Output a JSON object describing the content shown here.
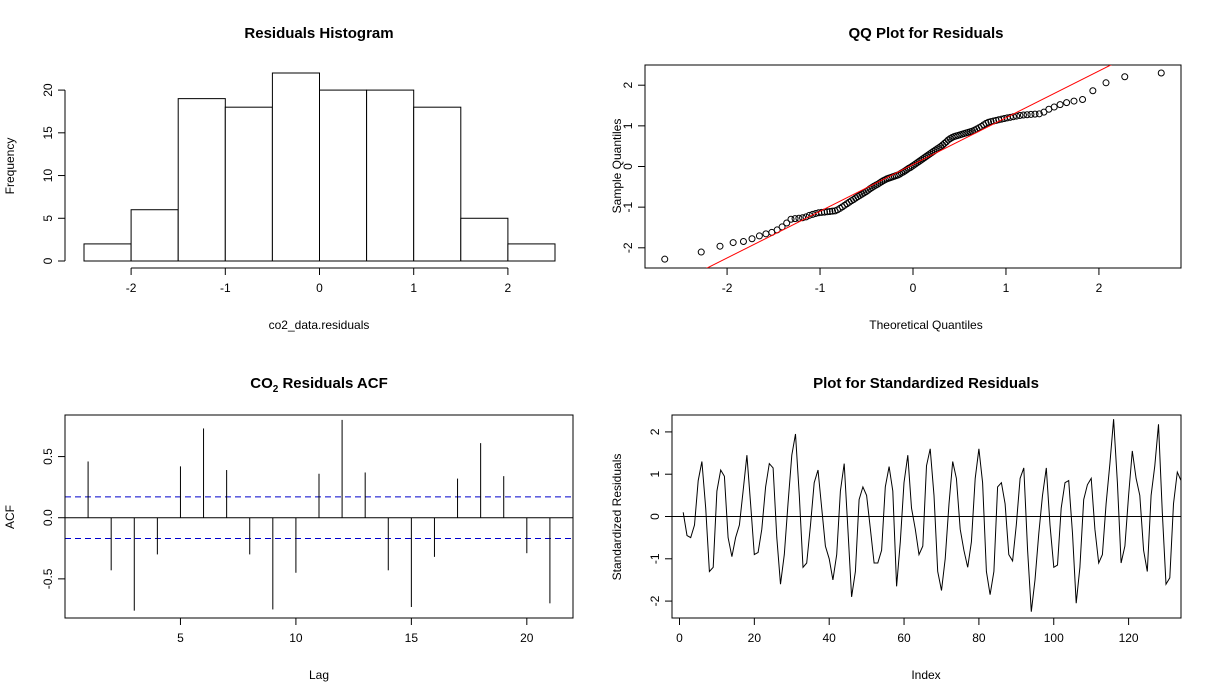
{
  "chart_data": [
    {
      "type": "bar",
      "title": "Residuals Histogram",
      "xlabel": "co2_data.residuals",
      "ylabel": "Frequency",
      "bin_edges": [
        -2.5,
        -2.0,
        -1.5,
        -1.0,
        -0.5,
        0.0,
        0.5,
        1.0,
        1.5,
        2.0,
        2.5
      ],
      "values": [
        2,
        6,
        19,
        18,
        22,
        20,
        20,
        18,
        5,
        2
      ],
      "xlim": [
        -2.5,
        2.5
      ],
      "ylim": [
        0,
        22
      ],
      "xticks": [
        "-2",
        "-1",
        "0",
        "1",
        "2"
      ],
      "yticks": [
        "0",
        "5",
        "10",
        "15",
        "20"
      ]
    },
    {
      "type": "scatter",
      "title": "QQ Plot for Residuals",
      "xlabel": "Theoretical Quantiles",
      "ylabel": "Sample Quantiles",
      "n_points": 132,
      "xlim": [
        -2.7,
        2.7
      ],
      "ylim": [
        -2.3,
        2.3
      ],
      "xticks": [
        "-2",
        "-1",
        "0",
        "1",
        "2"
      ],
      "yticks": [
        "-2",
        "-1",
        "0",
        "1",
        "2"
      ],
      "reference_line": {
        "intercept": 0.05,
        "slope": 1.15,
        "color": "#ff0000"
      },
      "sample_quantiles_sorted": [
        -2.28,
        -2.05,
        -1.88,
        -1.85,
        -1.76,
        -1.67,
        -1.63,
        -1.55,
        -1.45,
        -1.3,
        -1.28,
        -1.27,
        -1.25,
        -1.2,
        -1.17,
        -1.14,
        -1.13,
        -1.12,
        -1.11,
        -1.1,
        -1.09,
        -1.05,
        -1.0,
        -0.95,
        -0.9,
        -0.85,
        -0.81,
        -0.76,
        -0.72,
        -0.68,
        -0.64,
        -0.6,
        -0.55,
        -0.51,
        -0.47,
        -0.44,
        -0.4,
        -0.36,
        -0.33,
        -0.3,
        -0.28,
        -0.26,
        -0.24,
        -0.22,
        -0.2,
        -0.16,
        -0.13,
        -0.09,
        -0.05,
        -0.02,
        0.02,
        0.06,
        0.1,
        0.14,
        0.18,
        0.22,
        0.26,
        0.3,
        0.34,
        0.38,
        0.42,
        0.46,
        0.5,
        0.55,
        0.6,
        0.66,
        0.7,
        0.73,
        0.75,
        0.77,
        0.79,
        0.81,
        0.83,
        0.85,
        0.87,
        0.9,
        0.94,
        0.98,
        1.03,
        1.08,
        1.1,
        1.12,
        1.14,
        1.16,
        1.18,
        1.2,
        1.22,
        1.24,
        1.26,
        1.27,
        1.28,
        1.29,
        1.3,
        1.4,
        1.47,
        1.55,
        1.6,
        1.65,
        1.95,
        2.18,
        2.3
      ]
    },
    {
      "type": "bar",
      "title_main": "CO",
      "title_sub": "2",
      "title_rest": " Residuals ACF",
      "xlabel": "Lag",
      "ylabel": "ACF",
      "lags": [
        1,
        2,
        3,
        4,
        5,
        6,
        7,
        8,
        9,
        10,
        11,
        12,
        13,
        14,
        15,
        16,
        17,
        18,
        19,
        20,
        21
      ],
      "values": [
        0.46,
        -0.43,
        -0.76,
        -0.3,
        0.42,
        0.73,
        0.39,
        -0.3,
        -0.75,
        -0.45,
        0.36,
        0.8,
        0.37,
        -0.43,
        -0.73,
        -0.32,
        0.32,
        0.61,
        0.34,
        -0.29,
        -0.7
      ],
      "confidence_bound": 0.17,
      "bound_color": "#0000cc",
      "xlim": [
        0,
        22
      ],
      "ylim": [
        -0.82,
        0.84
      ],
      "xticks": [
        "5",
        "10",
        "15",
        "20"
      ],
      "yticks": [
        "-0.5",
        "0.0",
        "0.5"
      ]
    },
    {
      "type": "line",
      "title": "Plot for Standardized Residuals",
      "xlabel": "Index",
      "ylabel": "Standardized Residuals",
      "xlim": [
        -2,
        134
      ],
      "ylim": [
        -2.4,
        2.4
      ],
      "xticks": [
        "0",
        "20",
        "40",
        "60",
        "80",
        "100",
        "120"
      ],
      "yticks": [
        "-2",
        "-1",
        "0",
        "1",
        "2"
      ],
      "values": [
        0.1,
        -0.45,
        -0.5,
        -0.2,
        0.85,
        1.3,
        0.2,
        -1.3,
        -1.2,
        0.6,
        1.1,
        0.95,
        -0.5,
        -0.95,
        -0.5,
        -0.2,
        0.6,
        1.45,
        0.3,
        -0.9,
        -0.85,
        -0.3,
        0.7,
        1.25,
        1.15,
        -0.5,
        -1.6,
        -0.9,
        0.3,
        1.45,
        1.95,
        0.5,
        -1.2,
        -1.1,
        -0.2,
        0.8,
        1.1,
        0.2,
        -0.7,
        -1.0,
        -1.5,
        -0.9,
        0.6,
        1.25,
        -0.3,
        -1.9,
        -1.3,
        0.4,
        0.7,
        0.5,
        -0.3,
        -1.1,
        -1.1,
        -0.8,
        0.7,
        1.18,
        0.6,
        -1.65,
        -0.6,
        0.8,
        1.45,
        0.2,
        -0.3,
        -0.9,
        -0.7,
        1.2,
        1.6,
        0.5,
        -1.3,
        -1.75,
        -1.0,
        0.3,
        1.3,
        0.9,
        -0.3,
        -0.8,
        -1.2,
        -0.6,
        0.9,
        1.6,
        0.8,
        -1.3,
        -1.85,
        -1.3,
        0.7,
        0.8,
        0.3,
        -0.9,
        -1.05,
        -0.2,
        0.9,
        1.15,
        -0.8,
        -2.25,
        -1.5,
        -0.4,
        0.5,
        1.15,
        -0.2,
        -1.2,
        -1.15,
        0.2,
        0.8,
        0.85,
        -0.4,
        -2.05,
        -1.2,
        0.4,
        0.75,
        0.9,
        -0.3,
        -1.1,
        -0.9,
        0.3,
        1.25,
        2.3,
        0.8,
        -1.1,
        -0.7,
        0.5,
        1.55,
        0.9,
        0.5,
        -0.8,
        -1.3,
        0.5,
        1.2,
        2.18,
        0.1,
        -1.6,
        -1.45,
        0.3,
        1.05,
        0.85
      ]
    }
  ]
}
